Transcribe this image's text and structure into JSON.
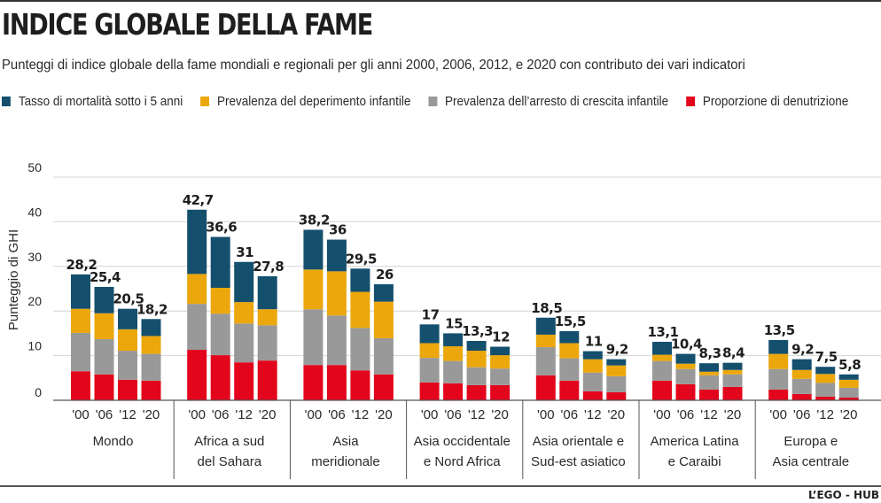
{
  "title": "INDICE GLOBALE DELLA FAME",
  "subtitle": "Punteggi di indice globale della fame mondiali e regionali per gli anni 2000, 2006, 2012, e 2020 con contributo dei vari indicatori",
  "credit": "L’EGO - HUB",
  "colors": {
    "mortality": "#154f6e",
    "wasting": "#eba70c",
    "stunting": "#999999",
    "undernourishment": "#e3051b"
  },
  "chart_data": {
    "type": "bar",
    "stacked": true,
    "title": "INDICE GLOBALE DELLA FAME",
    "ylabel": "Punteggio di GHI",
    "xlabel": "",
    "ylim": [
      0,
      50
    ],
    "yticks": [
      0,
      10,
      20,
      30,
      40,
      50
    ],
    "grid": true,
    "legend_position": "top-left",
    "legend": [
      {
        "key": "mortality",
        "label": "Tasso di mortalità sotto i 5 anni"
      },
      {
        "key": "wasting",
        "label": "Prevalenza del deperimento infantile"
      },
      {
        "key": "stunting",
        "label": "Prevalenza dell’arresto di crescita infantile"
      },
      {
        "key": "undernourishment",
        "label": "Proporzione di denutrizione"
      }
    ],
    "stack_order": [
      "undernourishment",
      "stunting",
      "wasting",
      "mortality"
    ],
    "year_labels": [
      "'00",
      "'06",
      "'12",
      "'20"
    ],
    "groups": [
      {
        "label": "Mondo",
        "bars": [
          {
            "year": "'00",
            "total": 28.2,
            "total_label": "28,2",
            "undernourishment": 6.5,
            "stunting": 8.6,
            "wasting": 5.4,
            "mortality": 7.7
          },
          {
            "year": "'06",
            "total": 25.4,
            "total_label": "25,4",
            "undernourishment": 5.8,
            "stunting": 7.9,
            "wasting": 5.8,
            "mortality": 5.9
          },
          {
            "year": "'12",
            "total": 20.5,
            "total_label": "20,5",
            "undernourishment": 4.6,
            "stunting": 6.5,
            "wasting": 4.8,
            "mortality": 4.6
          },
          {
            "year": "'20",
            "total": 18.2,
            "total_label": "18,2",
            "undernourishment": 4.4,
            "stunting": 6.0,
            "wasting": 4.0,
            "mortality": 3.8
          }
        ]
      },
      {
        "label": "Africa a sud del Sahara",
        "label_lines": [
          "Africa a sud",
          "del Sahara"
        ],
        "bars": [
          {
            "year": "'00",
            "total": 42.7,
            "total_label": "42,7",
            "undernourishment": 11.3,
            "stunting": 10.3,
            "wasting": 6.7,
            "mortality": 14.4
          },
          {
            "year": "'06",
            "total": 36.6,
            "total_label": "36,6",
            "undernourishment": 10.1,
            "stunting": 9.3,
            "wasting": 5.8,
            "mortality": 11.4
          },
          {
            "year": "'12",
            "total": 31,
            "total_label": "31",
            "undernourishment": 8.5,
            "stunting": 8.7,
            "wasting": 4.8,
            "mortality": 9.0
          },
          {
            "year": "'20",
            "total": 27.8,
            "total_label": "27,8",
            "undernourishment": 8.9,
            "stunting": 7.9,
            "wasting": 3.6,
            "mortality": 7.4
          }
        ]
      },
      {
        "label": "Asia meridionale",
        "label_lines": [
          "Asia",
          "meridionale"
        ],
        "bars": [
          {
            "year": "'00",
            "total": 38.2,
            "total_label": "38,2",
            "undernourishment": 7.9,
            "stunting": 12.5,
            "wasting": 8.9,
            "mortality": 8.9
          },
          {
            "year": "'06",
            "total": 36,
            "total_label": "36",
            "undernourishment": 7.9,
            "stunting": 11.1,
            "wasting": 9.9,
            "mortality": 7.1
          },
          {
            "year": "'12",
            "total": 29.5,
            "total_label": "29,5",
            "undernourishment": 6.7,
            "stunting": 9.5,
            "wasting": 8.1,
            "mortality": 5.2
          },
          {
            "year": "'20",
            "total": 26,
            "total_label": "26",
            "undernourishment": 5.8,
            "stunting": 8.1,
            "wasting": 8.2,
            "mortality": 3.9
          }
        ]
      },
      {
        "label": "Asia occidentale e Nord Africa",
        "label_lines": [
          "Asia occidentale",
          "e Nord Africa"
        ],
        "bars": [
          {
            "year": "'00",
            "total": 17,
            "total_label": "17",
            "undernourishment": 4.0,
            "stunting": 5.5,
            "wasting": 3.3,
            "mortality": 4.2
          },
          {
            "year": "'06",
            "total": 15,
            "total_label": "15",
            "undernourishment": 3.8,
            "stunting": 5.0,
            "wasting": 3.3,
            "mortality": 2.9
          },
          {
            "year": "'12",
            "total": 13.3,
            "total_label": "13,3",
            "undernourishment": 3.4,
            "stunting": 4.0,
            "wasting": 3.7,
            "mortality": 2.2
          },
          {
            "year": "'20",
            "total": 12,
            "total_label": "12",
            "undernourishment": 3.4,
            "stunting": 3.7,
            "wasting": 3.0,
            "mortality": 1.9
          }
        ]
      },
      {
        "label": "Asia orientale e Sud-est asiatico",
        "label_lines": [
          "Asia orientale e",
          "Sud-est asiatico"
        ],
        "bars": [
          {
            "year": "'00",
            "total": 18.5,
            "total_label": "18,5",
            "undernourishment": 5.6,
            "stunting": 6.3,
            "wasting": 2.8,
            "mortality": 3.8
          },
          {
            "year": "'06",
            "total": 15.5,
            "total_label": "15,5",
            "undernourishment": 4.4,
            "stunting": 5.0,
            "wasting": 3.4,
            "mortality": 2.7
          },
          {
            "year": "'12",
            "total": 11,
            "total_label": "11",
            "undernourishment": 2.0,
            "stunting": 4.2,
            "wasting": 3.0,
            "mortality": 1.8
          },
          {
            "year": "'20",
            "total": 9.2,
            "total_label": "9,2",
            "undernourishment": 1.8,
            "stunting": 3.6,
            "wasting": 2.4,
            "mortality": 1.4
          }
        ]
      },
      {
        "label": "America Latina e Caraibi",
        "label_lines": [
          "America Latina",
          "e Caraibi"
        ],
        "bars": [
          {
            "year": "'00",
            "total": 13.1,
            "total_label": "13,1",
            "undernourishment": 4.4,
            "stunting": 4.4,
            "wasting": 1.4,
            "mortality": 2.9
          },
          {
            "year": "'06",
            "total": 10.4,
            "total_label": "10,4",
            "undernourishment": 3.6,
            "stunting": 3.4,
            "wasting": 1.2,
            "mortality": 2.2
          },
          {
            "year": "'12",
            "total": 8.3,
            "total_label": "8,3",
            "undernourishment": 2.4,
            "stunting": 3.2,
            "wasting": 0.8,
            "mortality": 1.9
          },
          {
            "year": "'20",
            "total": 8.4,
            "total_label": "8,4",
            "undernourishment": 3.0,
            "stunting": 2.8,
            "wasting": 1.0,
            "mortality": 1.6
          }
        ]
      },
      {
        "label": "Europa e Asia centrale",
        "label_lines": [
          "Europa e",
          "Asia centrale"
        ],
        "bars": [
          {
            "year": "'00",
            "total": 13.5,
            "total_label": "13,5",
            "undernourishment": 2.4,
            "stunting": 4.6,
            "wasting": 3.4,
            "mortality": 3.1
          },
          {
            "year": "'06",
            "total": 9.2,
            "total_label": "9,2",
            "undernourishment": 1.4,
            "stunting": 3.4,
            "wasting": 2.0,
            "mortality": 2.4
          },
          {
            "year": "'12",
            "total": 7.5,
            "total_label": "7,5",
            "undernourishment": 0.8,
            "stunting": 3.1,
            "wasting": 2.0,
            "mortality": 1.6
          },
          {
            "year": "'20",
            "total": 5.8,
            "total_label": "5,8",
            "undernourishment": 0.6,
            "stunting": 2.2,
            "wasting": 1.8,
            "mortality": 1.2
          }
        ]
      }
    ]
  }
}
